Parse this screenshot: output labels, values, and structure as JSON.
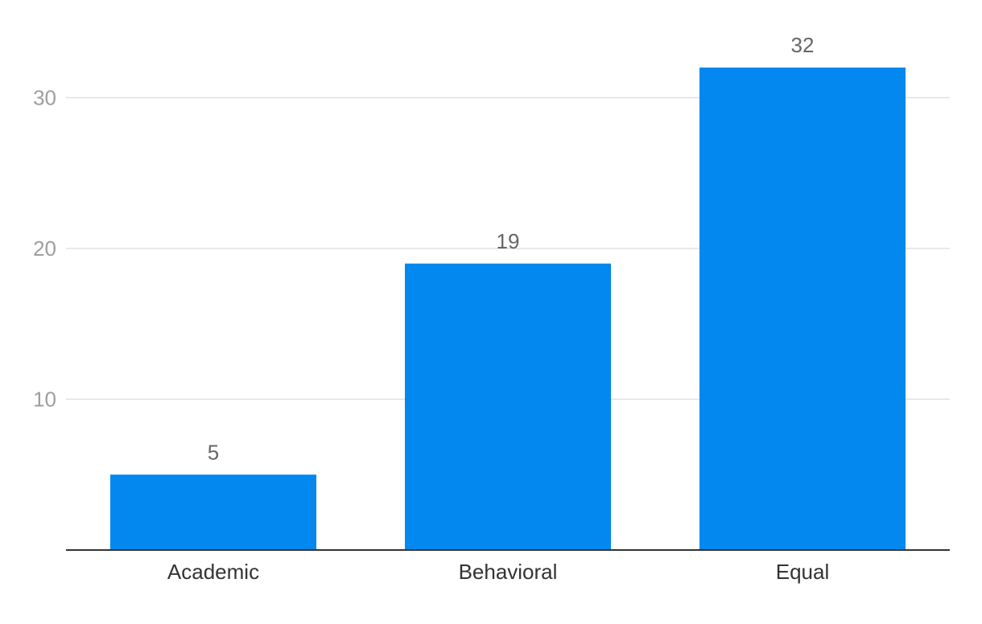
{
  "chart_data": {
    "type": "bar",
    "title": "",
    "xlabel": "",
    "ylabel": "",
    "categories": [
      "Academic",
      "Behavioral",
      "Equal"
    ],
    "values": [
      5,
      19,
      32
    ],
    "data_labels": [
      "5",
      "19",
      "32"
    ],
    "ylim": [
      0,
      32
    ],
    "yticks": [
      10,
      20,
      30
    ],
    "ytick_labels": [
      "10",
      "20",
      "30"
    ],
    "grid": true,
    "legend": "none"
  },
  "colors": {
    "bar": "#0288ef",
    "gridline": "#e0e0e0",
    "axis": "#333333"
  }
}
